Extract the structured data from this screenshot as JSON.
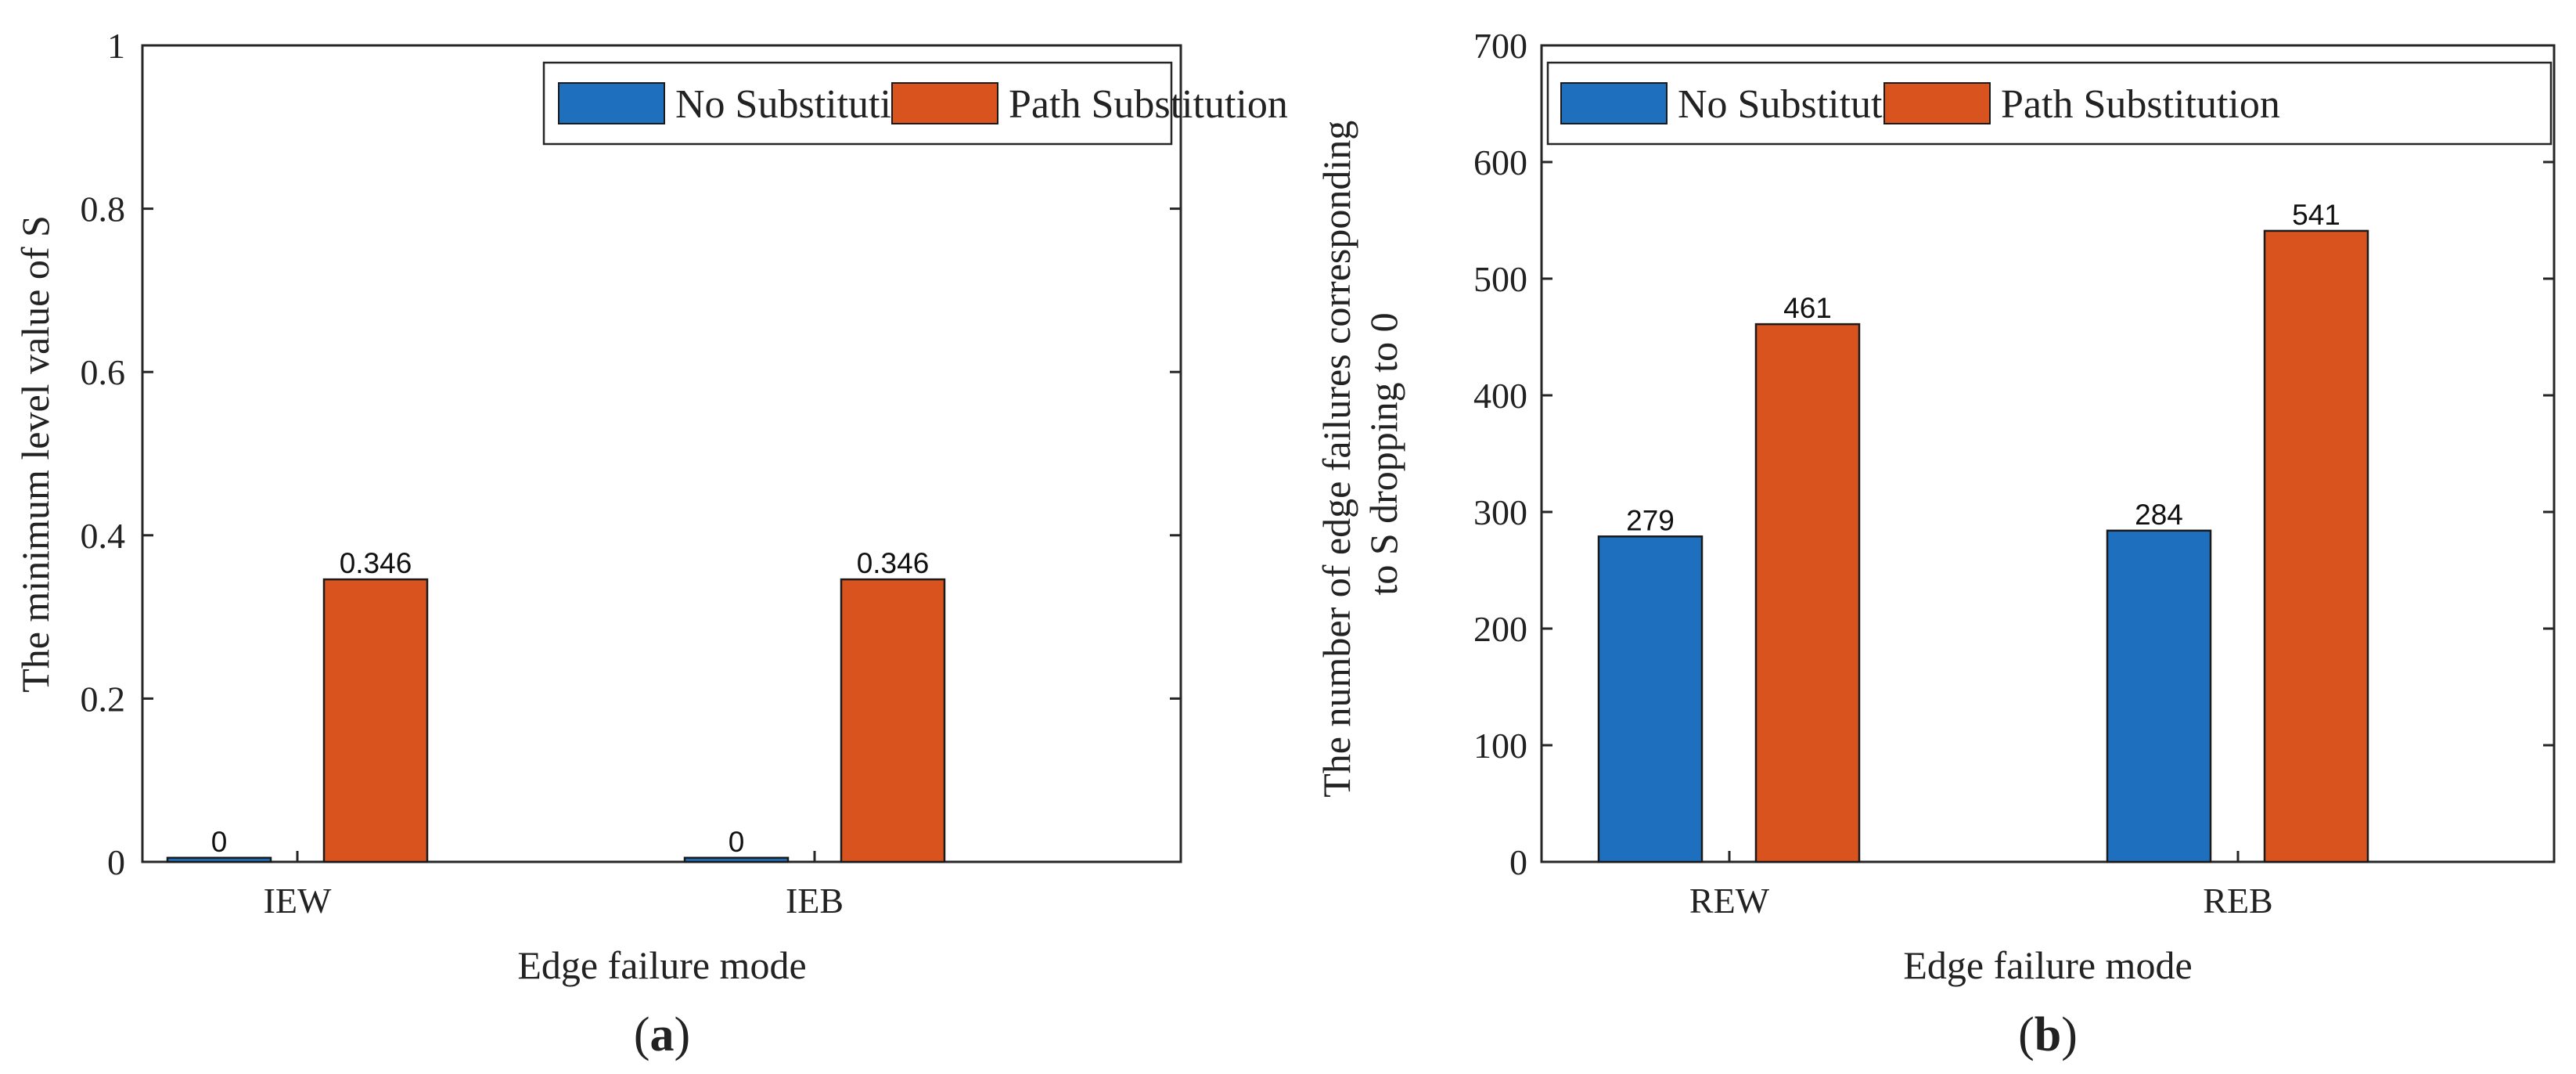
{
  "colors": {
    "series1": "#1f6fbf",
    "series2": "#d9531e",
    "axis": "#262626",
    "text": "#222222"
  },
  "legend": {
    "series1": "No Substitution",
    "series2": "Path Substitution"
  },
  "panel_labels": {
    "a": {
      "open": "(",
      "letter": "a",
      "close": ")"
    },
    "b": {
      "open": "(",
      "letter": "b",
      "close": ")"
    }
  },
  "chart_data": [
    {
      "type": "bar",
      "title": "",
      "categories": [
        "IEW",
        "IEB"
      ],
      "series": [
        {
          "name": "No Substitution",
          "values": [
            0.005,
            0.005
          ]
        },
        {
          "name": "Path Substitution",
          "values": [
            0.346,
            0.346
          ]
        }
      ],
      "data_labels": [
        [
          "0",
          "0"
        ],
        [
          "0.346",
          "0.346"
        ]
      ],
      "xlabel": "Edge failure mode",
      "ylabel": "The minimum level value of S",
      "ylim": [
        0,
        1
      ],
      "yticks": [
        0,
        0.2,
        0.4,
        0.6,
        0.8,
        1
      ],
      "ytick_labels": [
        "0",
        "0.2",
        "0.4",
        "0.6",
        "0.8",
        "1"
      ],
      "legend_position": "top-right",
      "grid": false
    },
    {
      "type": "bar",
      "title": "",
      "categories": [
        "REW",
        "REB"
      ],
      "series": [
        {
          "name": "No Substitution",
          "values": [
            279,
            284
          ]
        },
        {
          "name": "Path Substitution",
          "values": [
            461,
            541
          ]
        }
      ],
      "data_labels": [
        [
          "279",
          "284"
        ],
        [
          "461",
          "541"
        ]
      ],
      "xlabel": "Edge failure mode",
      "ylabel_lines": [
        "The number of edge failures corresponding",
        "to S dropping to 0"
      ],
      "ylim": [
        0,
        700
      ],
      "yticks": [
        0,
        100,
        200,
        300,
        400,
        500,
        600,
        700
      ],
      "ytick_labels": [
        "0",
        "100",
        "200",
        "300",
        "400",
        "500",
        "600",
        "700"
      ],
      "legend_position": "top-right",
      "grid": false
    }
  ]
}
